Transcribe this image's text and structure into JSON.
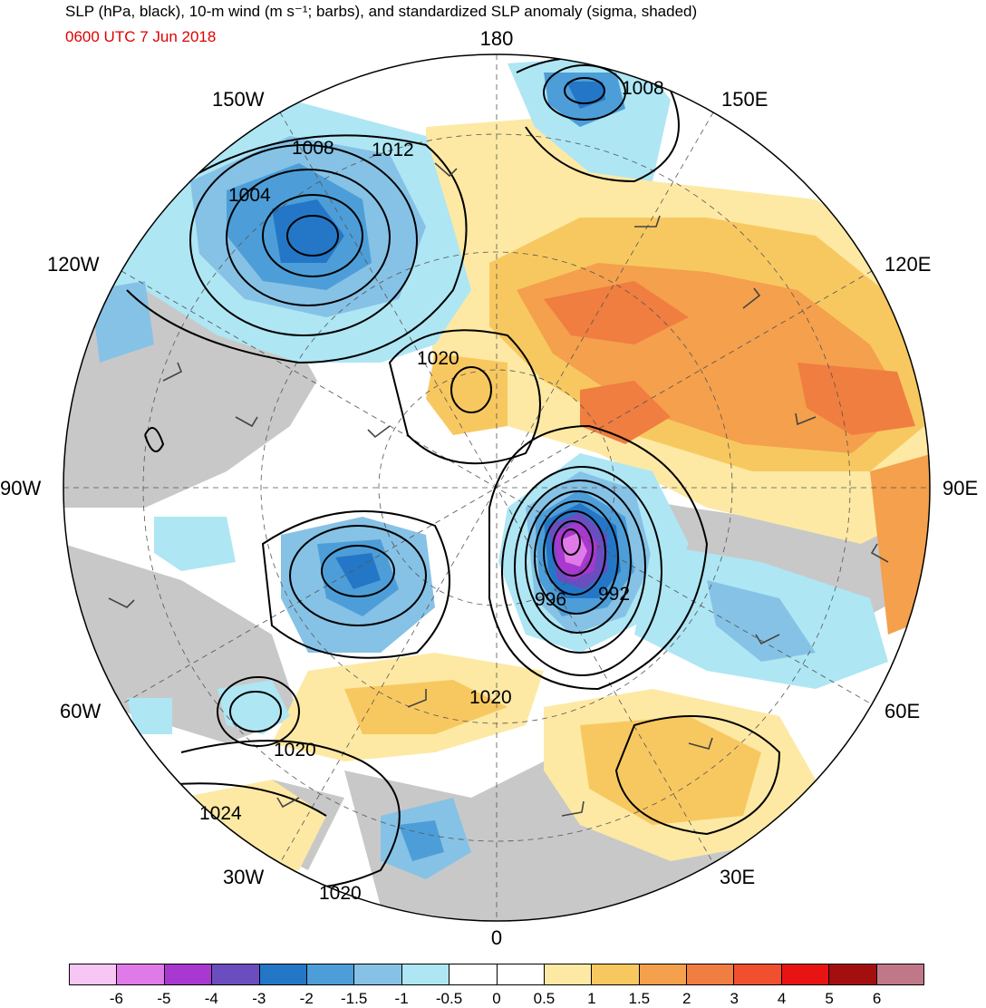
{
  "header": {
    "title": "SLP (hPa, black), 10-m wind (m s⁻¹; barbs), and standardized SLP anomaly (sigma, shaded)",
    "valid_time": "0600 UTC 7 Jun 2018"
  },
  "map": {
    "projection": "north-polar-stereographic",
    "longitude_labels": [
      "180",
      "150E",
      "120E",
      "90E",
      "60E",
      "30E",
      "0",
      "30W",
      "60W",
      "90W",
      "120W",
      "150W"
    ],
    "contour_labels": [
      "1008",
      "1008",
      "1012",
      "1004",
      "1020",
      "1020",
      "996",
      "992",
      "1020",
      "1024",
      "1020"
    ],
    "colors": {
      "land_gray": "#c8c8c8",
      "contour": "#000000",
      "title_time": "#e00000"
    }
  },
  "colorbar": {
    "colors": [
      "#f7c6f5",
      "#e07ae8",
      "#a838d0",
      "#6a4ec0",
      "#2477c6",
      "#4d9ed8",
      "#86c2e6",
      "#aee6f4",
      "#ffffff",
      "#ffffff",
      "#fde9a4",
      "#f8c860",
      "#f4a04c",
      "#f07e40",
      "#f0502e",
      "#e81414",
      "#a30f0f",
      "#c07888"
    ],
    "labels": [
      "-6",
      "-5",
      "-4",
      "-3",
      "-2",
      "-1.5",
      "-1",
      "-0.5",
      "0",
      "0.5",
      "1",
      "1.5",
      "2",
      "3",
      "4",
      "5",
      "6"
    ]
  }
}
